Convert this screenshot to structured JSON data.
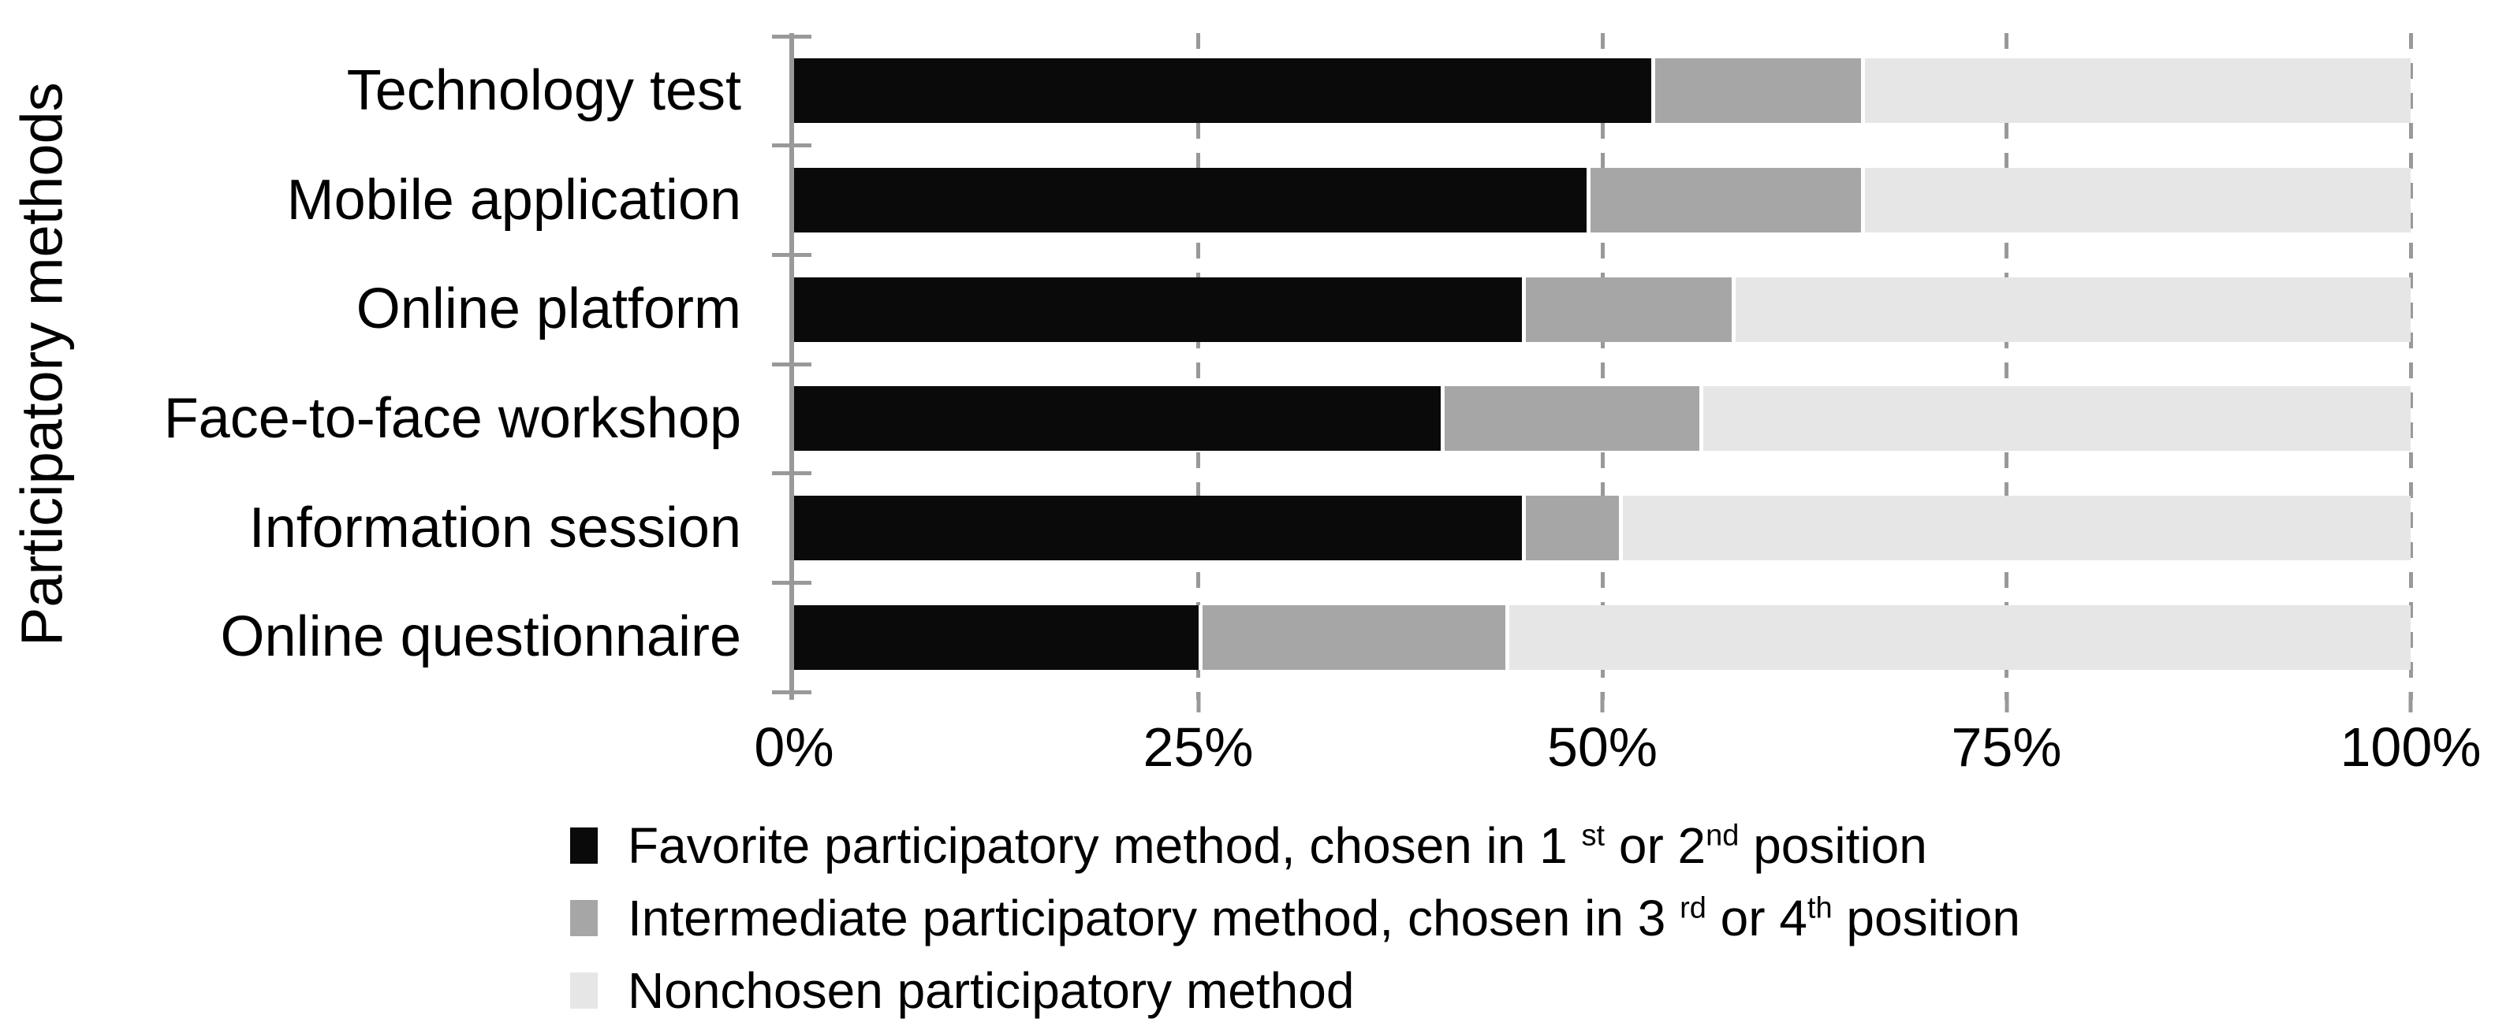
{
  "chart_data": {
    "type": "bar",
    "orientation": "horizontal",
    "stacked": true,
    "ylabel": "Participatory methods",
    "xlim": [
      0,
      100
    ],
    "grid": "dashed-vertical",
    "legend_position": "bottom-left",
    "axis_color": "#999999",
    "categories": [
      "Technology test",
      "Mobile application",
      "Online platform",
      "Face-to-face workshop",
      "Information session",
      "Online questionnaire"
    ],
    "series": [
      {
        "name": "Favorite participatory method, chosen in 1st or 2nd position",
        "color": "#0a0a0a",
        "values": [
          53,
          49,
          45,
          40,
          45,
          25
        ],
        "legend_parts": [
          "Favorite participatory method, chosen in 1 ",
          "st",
          " or 2",
          "nd",
          " position"
        ]
      },
      {
        "name": "Intermediate participatory method, chosen in 3rd or 4th position",
        "color": "#a6a6a6",
        "values": [
          13,
          17,
          13,
          16,
          6,
          19
        ],
        "legend_parts": [
          "Intermediate participatory method, chosen in 3 ",
          "rd",
          " or 4",
          "th",
          " position"
        ]
      },
      {
        "name": "Nonchosen participatory method",
        "color": "#e6e6e6",
        "values": [
          34,
          34,
          42,
          44,
          49,
          56
        ],
        "legend_parts": [
          "Nonchosen participatory method"
        ]
      }
    ],
    "x_ticks": [
      {
        "label": "0%",
        "value": 0
      },
      {
        "label": "25%",
        "value": 25
      },
      {
        "label": "50%",
        "value": 50
      },
      {
        "label": "75%",
        "value": 75
      },
      {
        "label": "100%",
        "value": 100
      }
    ]
  }
}
